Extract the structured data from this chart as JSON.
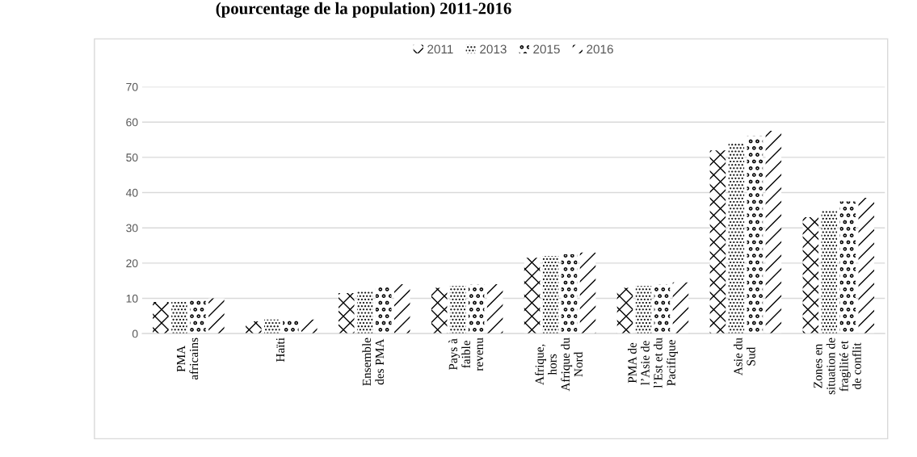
{
  "chart_data": {
    "type": "bar",
    "title": "(pourcentage de la population) 2011-2016",
    "categories": [
      "PMA\nafricains",
      "Haïti",
      "Ensemble\ndes PMA",
      "Pays à\nfaible\nrevenu",
      "Afrique,\nhors\nAfrique du\nNord",
      "PMA de\nl’Asie de\nl’Est et du\nPacifique",
      "Asie du\nSud",
      "Zones en\nsituation de\nfragilité et\nde conflit"
    ],
    "series": [
      {
        "name": "2011",
        "color": "#000000",
        "values": [
          9,
          3.5,
          11.5,
          13,
          21.5,
          13,
          52,
          33
        ]
      },
      {
        "name": "2013",
        "color": "#000000",
        "values": [
          9,
          4,
          12,
          13.5,
          22,
          13.5,
          54,
          35
        ]
      },
      {
        "name": "2015",
        "color": "#000000",
        "values": [
          9.5,
          4,
          13.5,
          14,
          22.5,
          14,
          56,
          37.5
        ]
      },
      {
        "name": "2016",
        "color": "#000000",
        "values": [
          10,
          4,
          14,
          14,
          23,
          14.5,
          57.5,
          38.5
        ]
      }
    ],
    "ylim": [
      0,
      70
    ],
    "yticks": [
      0,
      10,
      20,
      30,
      40,
      50,
      60,
      70
    ],
    "grid": "y",
    "legend": "top"
  }
}
